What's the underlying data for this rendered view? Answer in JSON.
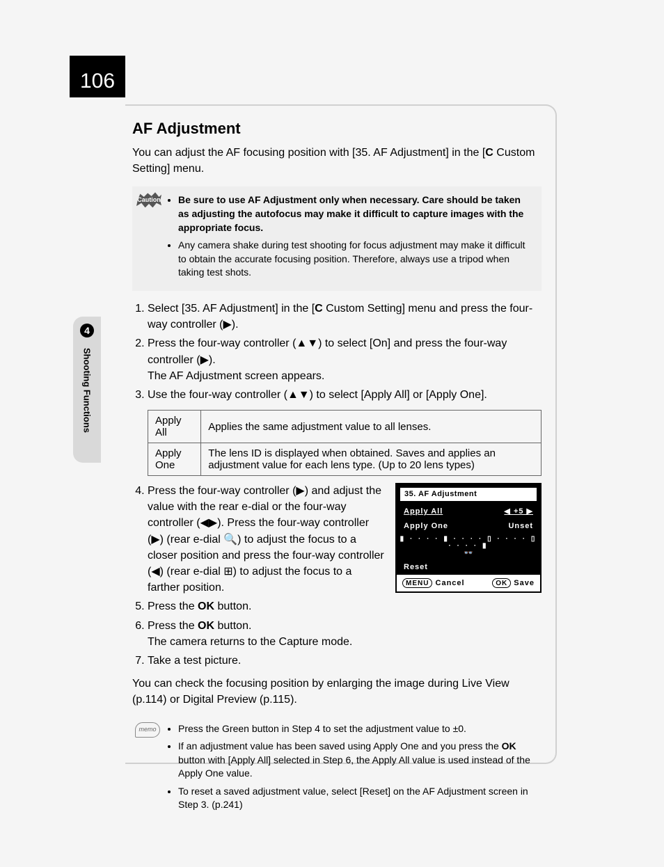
{
  "page_number": "106",
  "side": {
    "chapter_num": "4",
    "chapter_title": "Shooting Functions"
  },
  "title": "AF Adjustment",
  "intro": "You can adjust the AF focusing position with [35. AF Adjustment] in the [C Custom Setting] menu.",
  "caution": {
    "badge": "Caution",
    "items": [
      "Be sure to use AF Adjustment only when necessary. Care should be taken as adjusting the autofocus may make it difficult to capture images with the appropriate focus.",
      "Any camera shake during test shooting for focus adjustment may make it difficult to obtain the accurate focusing position. Therefore, always use a tripod when taking test shots."
    ]
  },
  "steps": {
    "s1": "Select [35. AF Adjustment] in the [C Custom Setting] menu and press the four-way controller (▶).",
    "s2_a": "Press the four-way controller (▲▼) to select [On] and press the four-way controller (▶).",
    "s2_b": "The AF Adjustment screen appears.",
    "s3": "Use the four-way controller (▲▼) to select [Apply All] or [Apply One].",
    "s4": "Press the four-way controller (▶) and adjust the value with the rear e-dial or the four-way controller (◀▶). Press the four-way controller (▶) (rear e-dial 🔍) to adjust the focus to a closer position and press the four-way controller (◀) (rear e-dial ⊞) to adjust the focus to a farther position.",
    "s5": "Press the OK button.",
    "s6_a": "Press the OK button.",
    "s6_b": "The camera returns to the Capture mode.",
    "s7": "Take a test picture."
  },
  "apply_table": {
    "r1c1": "Apply All",
    "r1c2": "Applies the same adjustment value to all lenses.",
    "r2c1": "Apply One",
    "r2c2": "The lens ID is displayed when obtained. Saves and applies an adjustment value for each lens type. (Up to 20 lens types)"
  },
  "lcd": {
    "title": "35. AF Adjustment",
    "row1_label": "Apply All",
    "row1_val": "+5",
    "row2_label": "Apply One",
    "row2_val": "Unset",
    "scale": "▮ · · · · ▮ · · · · ▯ · · · · ▯ · · · · ▮",
    "glass": "👓",
    "reset": "Reset",
    "menu_btn": "MENU",
    "cancel": "Cancel",
    "ok_btn": "OK",
    "save": "Save"
  },
  "after_steps": "You can check the focusing position by enlarging the image during Live View (p.114) or Digital Preview (p.115).",
  "memo": {
    "badge": "memo",
    "items": [
      "Press the Green button in Step 4 to set the adjustment value to ±0.",
      "If an adjustment value has been saved using Apply One and you press the OK button with [Apply All] selected in Step 6, the Apply All value is used instead of the Apply One value.",
      "To reset a saved adjustment value, select [Reset] on the AF Adjustment screen in Step 3. (p.241)"
    ]
  },
  "colors": {
    "page_bg": "#f5f5f5",
    "frame_border": "#d0d0d0",
    "tab_bg": "#d9d9d9",
    "caution_bg": "#eeeeee",
    "lcd_bg": "#000000",
    "lcd_fg": "#ffffff"
  }
}
